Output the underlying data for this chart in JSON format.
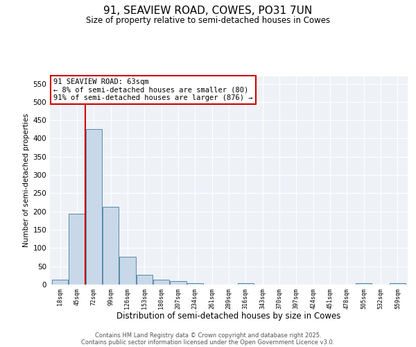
{
  "title": "91, SEAVIEW ROAD, COWES, PO31 7UN",
  "subtitle": "Size of property relative to semi-detached houses in Cowes",
  "xlabel": "Distribution of semi-detached houses by size in Cowes",
  "ylabel": "Number of semi-detached properties",
  "bar_color": "#c8d8e8",
  "bar_edge_color": "#5588aa",
  "categories": [
    "18sqm",
    "45sqm",
    "72sqm",
    "99sqm",
    "126sqm",
    "153sqm",
    "180sqm",
    "207sqm",
    "234sqm",
    "261sqm",
    "289sqm",
    "316sqm",
    "343sqm",
    "370sqm",
    "397sqm",
    "424sqm",
    "451sqm",
    "478sqm",
    "505sqm",
    "532sqm",
    "559sqm"
  ],
  "values": [
    13,
    193,
    425,
    212,
    76,
    27,
    14,
    10,
    3,
    0,
    0,
    3,
    0,
    0,
    0,
    0,
    0,
    0,
    3,
    0,
    3
  ],
  "ylim": [
    0,
    570
  ],
  "yticks": [
    0,
    50,
    100,
    150,
    200,
    250,
    300,
    350,
    400,
    450,
    500,
    550
  ],
  "property_line_x": 1.5,
  "property_line_color": "#cc0000",
  "annotation_text": "91 SEAVIEW ROAD: 63sqm\n← 8% of semi-detached houses are smaller (80)\n91% of semi-detached houses are larger (876) →",
  "bg_color": "#eef2f7",
  "footer_line1": "Contains HM Land Registry data © Crown copyright and database right 2025.",
  "footer_line2": "Contains public sector information licensed under the Open Government Licence v3.0."
}
